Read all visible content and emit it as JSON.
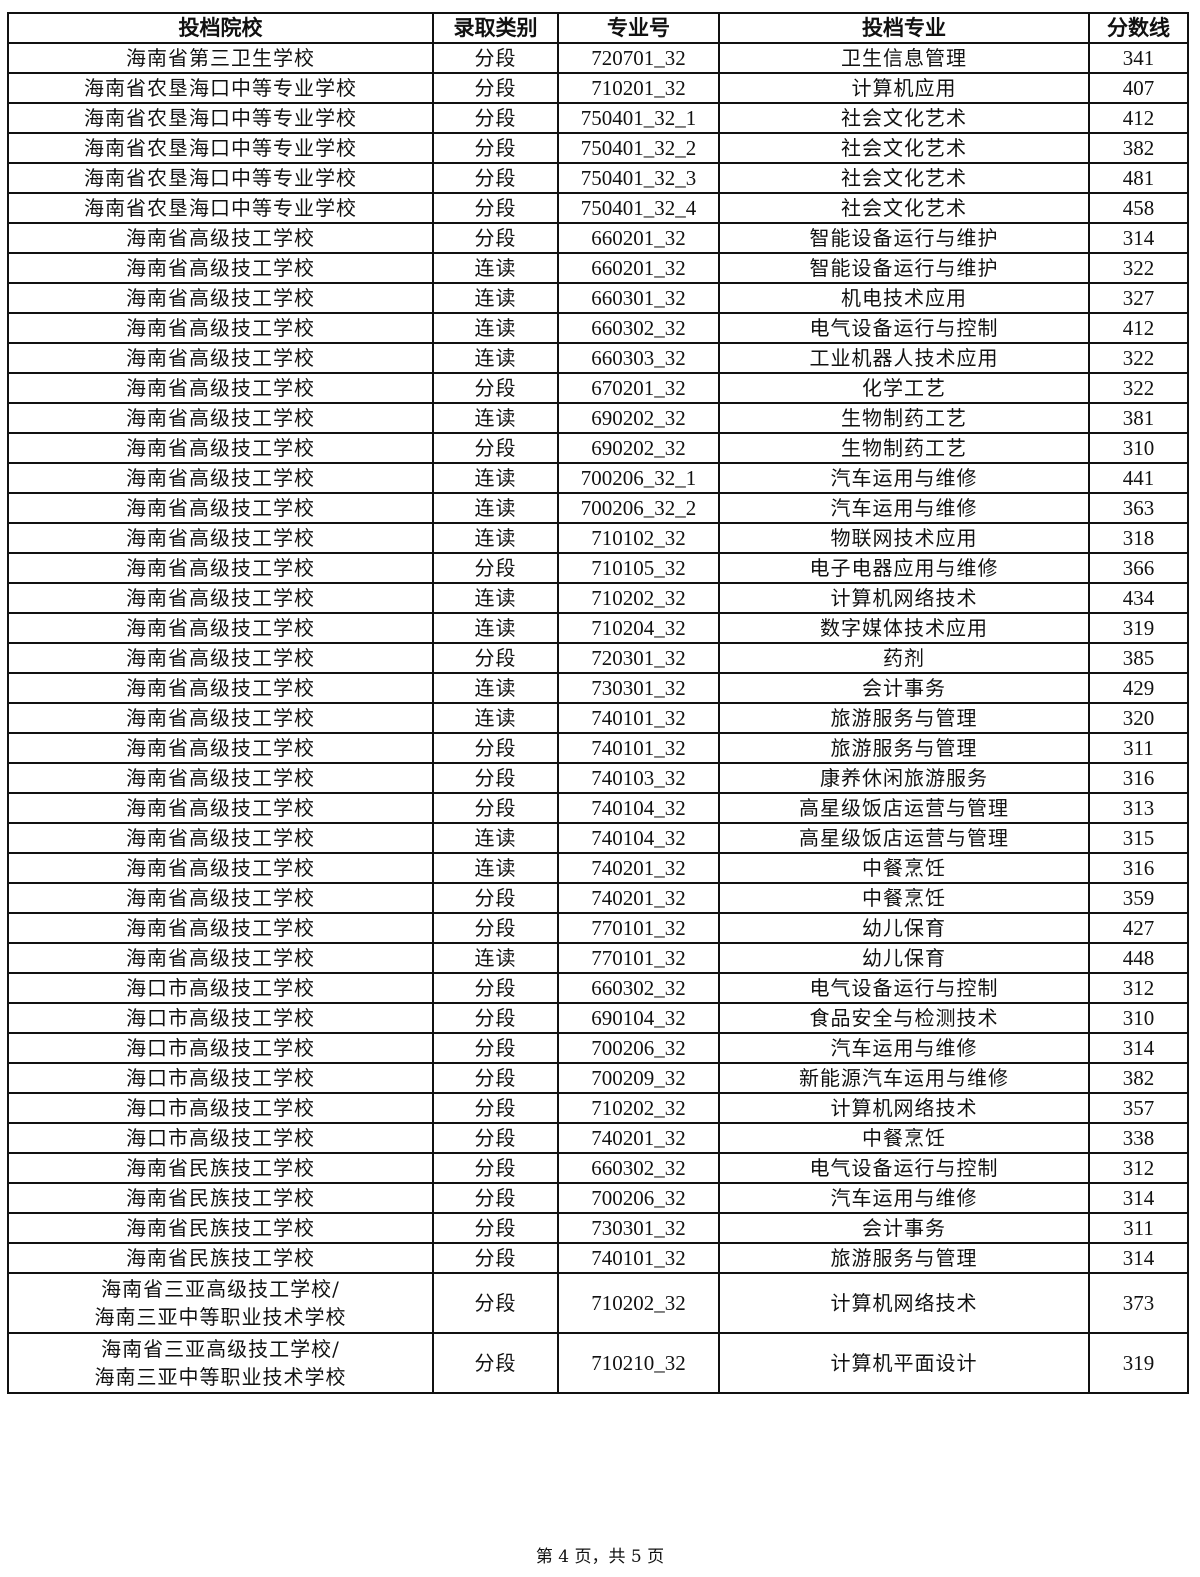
{
  "table": {
    "headers": [
      "投档院校",
      "录取类别",
      "专业号",
      "投档专业",
      "分数线"
    ],
    "rows": [
      [
        "海南省第三卫生学校",
        "分段",
        "720701_32",
        "卫生信息管理",
        "341"
      ],
      [
        "海南省农垦海口中等专业学校",
        "分段",
        "710201_32",
        "计算机应用",
        "407"
      ],
      [
        "海南省农垦海口中等专业学校",
        "分段",
        "750401_32_1",
        "社会文化艺术",
        "412"
      ],
      [
        "海南省农垦海口中等专业学校",
        "分段",
        "750401_32_2",
        "社会文化艺术",
        "382"
      ],
      [
        "海南省农垦海口中等专业学校",
        "分段",
        "750401_32_3",
        "社会文化艺术",
        "481"
      ],
      [
        "海南省农垦海口中等专业学校",
        "分段",
        "750401_32_4",
        "社会文化艺术",
        "458"
      ],
      [
        "海南省高级技工学校",
        "分段",
        "660201_32",
        "智能设备运行与维护",
        "314"
      ],
      [
        "海南省高级技工学校",
        "连读",
        "660201_32",
        "智能设备运行与维护",
        "322"
      ],
      [
        "海南省高级技工学校",
        "连读",
        "660301_32",
        "机电技术应用",
        "327"
      ],
      [
        "海南省高级技工学校",
        "连读",
        "660302_32",
        "电气设备运行与控制",
        "412"
      ],
      [
        "海南省高级技工学校",
        "连读",
        "660303_32",
        "工业机器人技术应用",
        "322"
      ],
      [
        "海南省高级技工学校",
        "分段",
        "670201_32",
        "化学工艺",
        "322"
      ],
      [
        "海南省高级技工学校",
        "连读",
        "690202_32",
        "生物制药工艺",
        "381"
      ],
      [
        "海南省高级技工学校",
        "分段",
        "690202_32",
        "生物制药工艺",
        "310"
      ],
      [
        "海南省高级技工学校",
        "连读",
        "700206_32_1",
        "汽车运用与维修",
        "441"
      ],
      [
        "海南省高级技工学校",
        "连读",
        "700206_32_2",
        "汽车运用与维修",
        "363"
      ],
      [
        "海南省高级技工学校",
        "连读",
        "710102_32",
        "物联网技术应用",
        "318"
      ],
      [
        "海南省高级技工学校",
        "分段",
        "710105_32",
        "电子电器应用与维修",
        "366"
      ],
      [
        "海南省高级技工学校",
        "连读",
        "710202_32",
        "计算机网络技术",
        "434"
      ],
      [
        "海南省高级技工学校",
        "连读",
        "710204_32",
        "数字媒体技术应用",
        "319"
      ],
      [
        "海南省高级技工学校",
        "分段",
        "720301_32",
        "药剂",
        "385"
      ],
      [
        "海南省高级技工学校",
        "连读",
        "730301_32",
        "会计事务",
        "429"
      ],
      [
        "海南省高级技工学校",
        "连读",
        "740101_32",
        "旅游服务与管理",
        "320"
      ],
      [
        "海南省高级技工学校",
        "分段",
        "740101_32",
        "旅游服务与管理",
        "311"
      ],
      [
        "海南省高级技工学校",
        "分段",
        "740103_32",
        "康养休闲旅游服务",
        "316"
      ],
      [
        "海南省高级技工学校",
        "分段",
        "740104_32",
        "高星级饭店运营与管理",
        "313"
      ],
      [
        "海南省高级技工学校",
        "连读",
        "740104_32",
        "高星级饭店运营与管理",
        "315"
      ],
      [
        "海南省高级技工学校",
        "连读",
        "740201_32",
        "中餐烹饪",
        "316"
      ],
      [
        "海南省高级技工学校",
        "分段",
        "740201_32",
        "中餐烹饪",
        "359"
      ],
      [
        "海南省高级技工学校",
        "分段",
        "770101_32",
        "幼儿保育",
        "427"
      ],
      [
        "海南省高级技工学校",
        "连读",
        "770101_32",
        "幼儿保育",
        "448"
      ],
      [
        "海口市高级技工学校",
        "分段",
        "660302_32",
        "电气设备运行与控制",
        "312"
      ],
      [
        "海口市高级技工学校",
        "分段",
        "690104_32",
        "食品安全与检测技术",
        "310"
      ],
      [
        "海口市高级技工学校",
        "分段",
        "700206_32",
        "汽车运用与维修",
        "314"
      ],
      [
        "海口市高级技工学校",
        "分段",
        "700209_32",
        "新能源汽车运用与维修",
        "382"
      ],
      [
        "海口市高级技工学校",
        "分段",
        "710202_32",
        "计算机网络技术",
        "357"
      ],
      [
        "海口市高级技工学校",
        "分段",
        "740201_32",
        "中餐烹饪",
        "338"
      ],
      [
        "海南省民族技工学校",
        "分段",
        "660302_32",
        "电气设备运行与控制",
        "312"
      ],
      [
        "海南省民族技工学校",
        "分段",
        "700206_32",
        "汽车运用与维修",
        "314"
      ],
      [
        "海南省民族技工学校",
        "分段",
        "730301_32",
        "会计事务",
        "311"
      ],
      [
        "海南省民族技工学校",
        "分段",
        "740101_32",
        "旅游服务与管理",
        "314"
      ],
      [
        "海南省三亚高级技工学校/\n海南三亚中等职业技术学校",
        "分段",
        "710202_32",
        "计算机网络技术",
        "373"
      ],
      [
        "海南省三亚高级技工学校/\n海南三亚中等职业技术学校",
        "分段",
        "710210_32",
        "计算机平面设计",
        "319"
      ]
    ]
  },
  "footer": {
    "page_label": "第 4 页，共 5 页"
  }
}
